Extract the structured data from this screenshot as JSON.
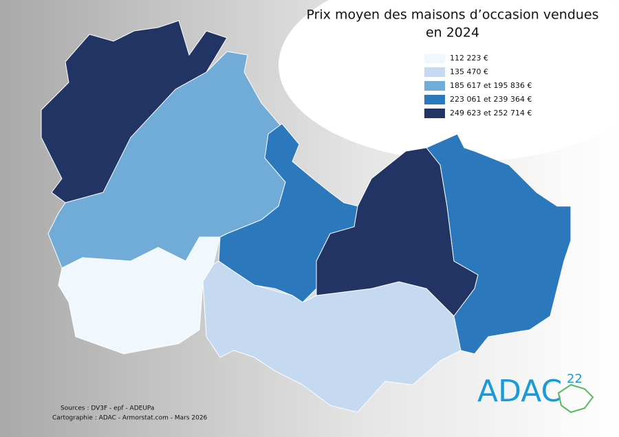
{
  "title": {
    "lines": [
      "Prix moyen des maisons d’occasion vendues",
      "en 2024"
    ]
  },
  "legend": [
    {
      "label": "112 223 €",
      "color": "#f1f8fd"
    },
    {
      "label": "135 470 €",
      "color": "#c5daf0"
    },
    {
      "label": "185 617  et 195 836 €",
      "color": "#71acd8"
    },
    {
      "label": "223 061 et 239 364 €",
      "color": "#2b78bd"
    },
    {
      "label": "249 623 et 252 714 €",
      "color": "#223463"
    }
  ],
  "sources": "Sources : DV3F - epf - ADEUPa",
  "credits": "Cartographie : ADAC - Armorstat.com - Mars 2026",
  "logo": {
    "text": "ADAC",
    "superscript": "22"
  }
}
